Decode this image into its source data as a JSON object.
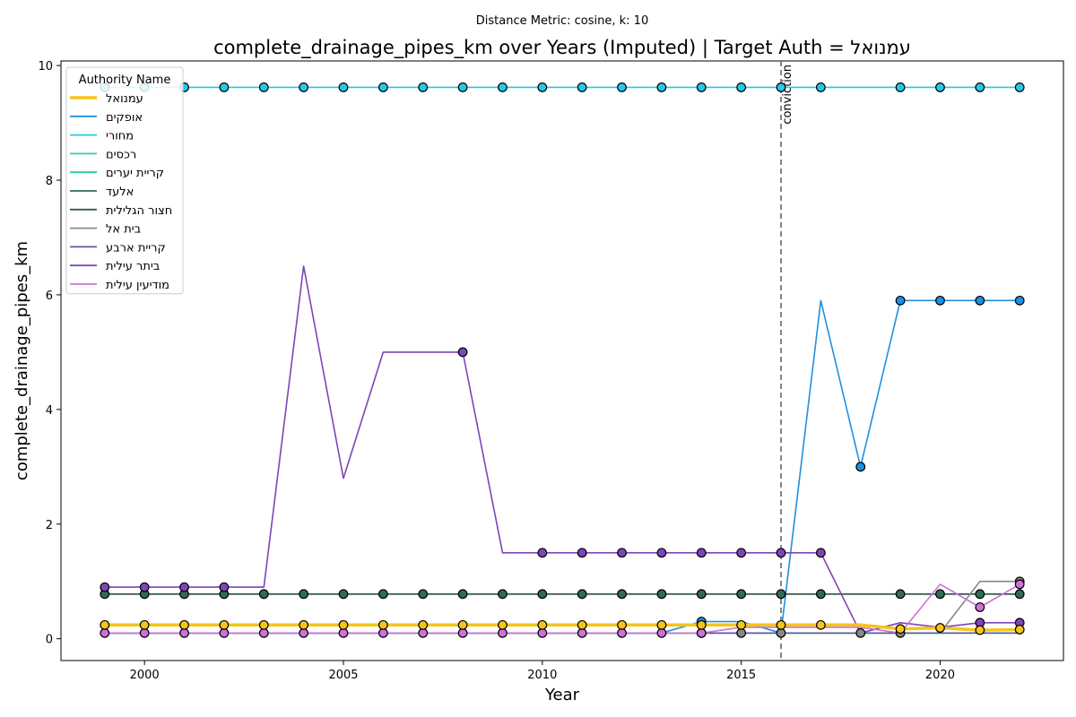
{
  "chart_data": {
    "type": "line",
    "title": "complete_drainage_pipes_km over Years (Imputed) | Target Auth = עמנואל",
    "subtitle": "Distance Metric: cosine, k: 10",
    "xlabel": "Year",
    "ylabel": "complete_drainage_pipes_km",
    "xlim": [
      1997.9,
      2023.1
    ],
    "ylim": [
      -0.38,
      10.08
    ],
    "xticks": [
      2000,
      2005,
      2010,
      2015,
      2020
    ],
    "yticks": [
      0,
      2,
      4,
      6,
      8,
      10
    ],
    "x": [
      1999,
      2000,
      2001,
      2002,
      2003,
      2004,
      2005,
      2006,
      2007,
      2008,
      2009,
      2010,
      2011,
      2012,
      2013,
      2014,
      2015,
      2016,
      2017,
      2018,
      2019,
      2020,
      2021,
      2022
    ],
    "legend": {
      "title": "Authority Name",
      "position": "top-left"
    },
    "annotations": [
      {
        "x": 2016,
        "label": "conviction",
        "style": "dashed vertical line"
      }
    ],
    "series": [
      {
        "name": "עמנואל",
        "color": "#f5c518",
        "target": true,
        "values": [
          0.24,
          0.24,
          0.24,
          0.24,
          0.24,
          0.24,
          0.24,
          0.24,
          0.24,
          0.24,
          0.24,
          0.24,
          0.24,
          0.24,
          0.24,
          0.24,
          0.24,
          0.24,
          0.24,
          0.24,
          0.17,
          0.19,
          0.15,
          0.16
        ],
        "markers": [
          0,
          1,
          2,
          3,
          4,
          5,
          6,
          7,
          8,
          9,
          10,
          11,
          12,
          13,
          14,
          15,
          16,
          17,
          18,
          20,
          21,
          22,
          23
        ]
      },
      {
        "name": "אופקים",
        "color": "#1f8fe0",
        "values": [
          0.1,
          0.1,
          0.1,
          0.1,
          0.1,
          0.1,
          0.1,
          0.1,
          0.1,
          0.1,
          0.1,
          0.1,
          0.1,
          0.1,
          0.1,
          0.3,
          0.3,
          0.1,
          5.9,
          3.0,
          5.9,
          5.9,
          5.9,
          5.9
        ],
        "markers": [
          15,
          19,
          20,
          21,
          22,
          23
        ]
      },
      {
        "name": "מחורי",
        "color": "#27c7e8",
        "values": [
          9.62,
          9.62,
          9.62,
          9.62,
          9.62,
          9.62,
          9.62,
          9.62,
          9.62,
          9.62,
          9.62,
          9.62,
          9.62,
          9.62,
          9.62,
          9.62,
          9.62,
          9.62,
          9.62,
          9.62,
          9.62,
          9.62,
          9.62,
          9.62
        ],
        "markers": [
          0,
          1,
          2,
          3,
          4,
          5,
          6,
          7,
          8,
          9,
          10,
          11,
          12,
          13,
          14,
          15,
          16,
          17,
          18,
          20,
          21,
          22,
          23
        ]
      },
      {
        "name": "רכסים",
        "color": "#22d3b5",
        "values": [
          0.1,
          0.1,
          0.1,
          0.1,
          0.1,
          0.1,
          0.1,
          0.1,
          0.1,
          0.1,
          0.1,
          0.1,
          0.1,
          0.1,
          0.1,
          0.1,
          0.1,
          0.1,
          0.1,
          0.1,
          0.1,
          0.1,
          0.1,
          0.1
        ],
        "markers": []
      },
      {
        "name": "קריית יערים",
        "color": "#2ecc8a",
        "values": [
          0.1,
          0.1,
          0.1,
          0.1,
          0.1,
          0.1,
          0.1,
          0.1,
          0.1,
          0.1,
          0.1,
          0.1,
          0.1,
          0.1,
          0.1,
          0.1,
          0.1,
          0.1,
          0.1,
          0.1,
          0.1,
          0.1,
          0.1,
          0.1
        ],
        "markers": []
      },
      {
        "name": "אלעד",
        "color": "#2f6b55",
        "values": [
          0.78,
          0.78,
          0.78,
          0.78,
          0.78,
          0.78,
          0.78,
          0.78,
          0.78,
          0.78,
          0.78,
          0.78,
          0.78,
          0.78,
          0.78,
          0.78,
          0.78,
          0.78,
          0.78,
          0.78,
          0.78,
          0.78,
          0.78,
          0.78
        ],
        "markers": [
          0,
          1,
          2,
          3,
          4,
          5,
          6,
          7,
          8,
          9,
          10,
          11,
          12,
          13,
          14,
          15,
          16,
          17,
          18,
          20,
          21,
          22,
          23
        ]
      },
      {
        "name": "חצור הגלילית",
        "color": "#36594a",
        "values": [
          0.78,
          0.78,
          0.78,
          0.78,
          0.78,
          0.78,
          0.78,
          0.78,
          0.78,
          0.78,
          0.78,
          0.78,
          0.78,
          0.78,
          0.78,
          0.78,
          0.78,
          0.78,
          0.78,
          0.78,
          0.78,
          0.78,
          0.78,
          0.78
        ],
        "markers": []
      },
      {
        "name": "בית אל",
        "color": "#888888",
        "values": [
          0.1,
          0.1,
          0.1,
          0.1,
          0.1,
          0.1,
          0.1,
          0.1,
          0.1,
          0.1,
          0.1,
          0.1,
          0.1,
          0.1,
          0.1,
          0.1,
          0.1,
          0.1,
          0.1,
          0.1,
          0.1,
          0.1,
          1.0,
          1.0
        ],
        "markers": [
          15,
          16,
          17,
          19,
          20,
          23
        ]
      },
      {
        "name": "קריית ארבע",
        "color": "#5c5aa0",
        "values": [
          0.1,
          0.1,
          0.1,
          0.1,
          0.1,
          0.1,
          0.1,
          0.1,
          0.1,
          0.1,
          0.1,
          0.1,
          0.1,
          0.1,
          0.1,
          0.1,
          0.1,
          0.1,
          0.1,
          0.1,
          0.1,
          0.1,
          0.1,
          0.1
        ],
        "markers": []
      },
      {
        "name": "ביתר עילית",
        "color": "#7e44b8",
        "values": [
          0.9,
          0.9,
          0.9,
          0.9,
          0.9,
          6.5,
          2.8,
          5.0,
          5.0,
          5.0,
          1.5,
          1.5,
          1.5,
          1.5,
          1.5,
          1.5,
          1.5,
          1.5,
          1.5,
          0.1,
          0.28,
          0.2,
          0.28,
          0.28
        ],
        "markers": [
          0,
          1,
          2,
          3,
          9,
          11,
          12,
          13,
          14,
          15,
          16,
          17,
          18,
          22,
          23
        ]
      },
      {
        "name": "מודיעין עילית",
        "color": "#d070d8",
        "values": [
          0.1,
          0.1,
          0.1,
          0.1,
          0.1,
          0.1,
          0.1,
          0.1,
          0.1,
          0.1,
          0.1,
          0.1,
          0.1,
          0.1,
          0.1,
          0.1,
          0.2,
          0.2,
          0.2,
          0.2,
          0.1,
          0.95,
          0.55,
          0.95
        ],
        "markers": [
          0,
          1,
          2,
          3,
          4,
          5,
          6,
          7,
          8,
          9,
          10,
          11,
          12,
          13,
          14,
          15,
          22,
          23
        ]
      }
    ]
  }
}
